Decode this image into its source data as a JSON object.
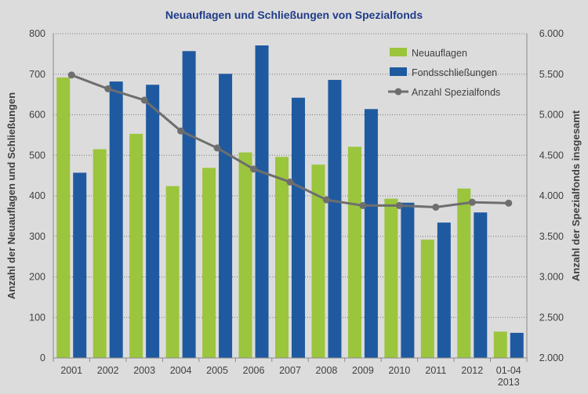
{
  "chart_data": {
    "type": "bar",
    "title": "Neuauflagen und Schließungen von Spezialfonds",
    "categories": [
      [
        "2001"
      ],
      [
        "2002"
      ],
      [
        "2003"
      ],
      [
        "2004"
      ],
      [
        "2005"
      ],
      [
        "2006"
      ],
      [
        "2007"
      ],
      [
        "2008"
      ],
      [
        "2009"
      ],
      [
        "2010"
      ],
      [
        "2011"
      ],
      [
        "2012"
      ],
      [
        "01-04",
        "2013"
      ]
    ],
    "series": [
      {
        "name": "Neuauflagen",
        "type": "bar",
        "axis": "left",
        "color": "#9bc53d",
        "values": [
          692,
          515,
          553,
          424,
          469,
          507,
          496,
          477,
          521,
          393,
          292,
          418,
          65
        ]
      },
      {
        "name": "Fondsschließungen",
        "type": "bar",
        "axis": "left",
        "color": "#1f5aa0",
        "values": [
          457,
          682,
          674,
          757,
          701,
          771,
          642,
          686,
          614,
          383,
          334,
          359,
          62
        ]
      },
      {
        "name": "Anzahl Spezialfonds",
        "type": "line",
        "axis": "right",
        "color": "#6e6e6e",
        "values": [
          5490,
          5320,
          5180,
          4800,
          4590,
          4330,
          4170,
          3950,
          3880,
          3880,
          3860,
          3920,
          3910
        ]
      }
    ],
    "ylabel_left": "Anzahl der Neuauflagen und Schließungen",
    "ylabel_right": "Anzahl der Spezialfonds insgesamt",
    "ylim_left": [
      0,
      800
    ],
    "yticks_left": [
      "0",
      "100",
      "200",
      "300",
      "400",
      "500",
      "600",
      "700",
      "800"
    ],
    "ylim_right": [
      2000,
      6000
    ],
    "yticks_right": [
      "2.000",
      "2.500",
      "3.000",
      "3.500",
      "4.000",
      "4.500",
      "5.000",
      "5.500",
      "6.000"
    ],
    "grid": "horizontal dotted",
    "legend_position": "top-right"
  }
}
